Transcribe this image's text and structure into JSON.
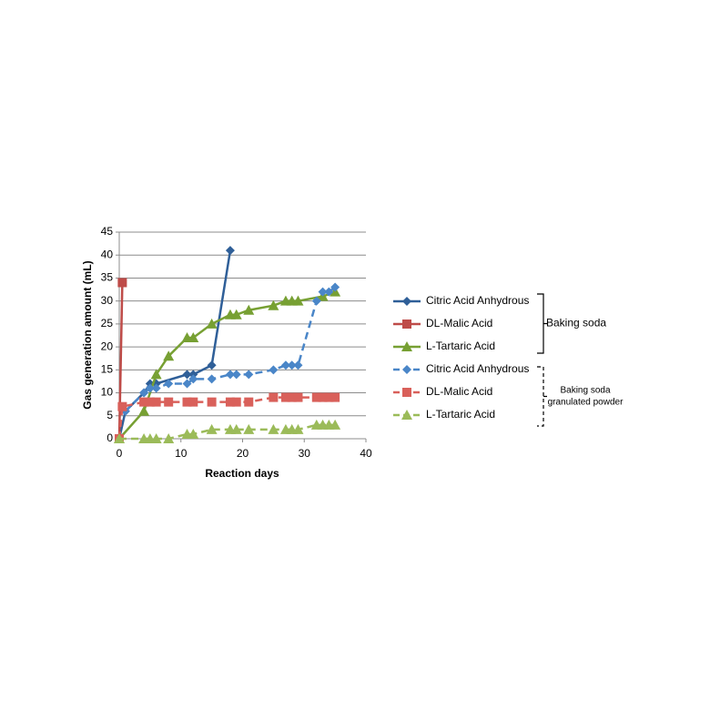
{
  "chart_data": {
    "type": "line",
    "x_label": "Reaction days",
    "y_label": "Gas generation amount (mL)",
    "xlim": [
      0,
      40
    ],
    "xticks": [
      0,
      10,
      20,
      30,
      40
    ],
    "ylim": [
      0,
      45
    ],
    "yticks": [
      0,
      5,
      10,
      15,
      20,
      25,
      30,
      35,
      40,
      45
    ],
    "grid": true,
    "series": [
      {
        "name": "Citric Acid Anhydrous",
        "color": "#2F5F98",
        "dashed": false,
        "marker": "diamond",
        "x": [
          0,
          1,
          4,
          5,
          6,
          11,
          12,
          15,
          18
        ],
        "values": [
          0,
          6,
          10,
          12,
          12,
          14,
          14,
          16,
          41
        ]
      },
      {
        "name": "DL-Malic  Acid",
        "color": "#BE4B48",
        "dashed": false,
        "marker": "square",
        "x": [
          0,
          0.5
        ],
        "values": [
          0,
          34
        ]
      },
      {
        "name": "L-Tartaric Acid",
        "color": "#77A033",
        "dashed": false,
        "marker": "triangle",
        "x": [
          0,
          4,
          6,
          8,
          11,
          12,
          15,
          18,
          19,
          21,
          25,
          27,
          28,
          29,
          33,
          35
        ],
        "values": [
          0,
          6,
          14,
          18,
          22,
          22,
          25,
          27,
          27,
          28,
          29,
          30,
          30,
          30,
          31,
          32
        ]
      },
      {
        "name": "Citric Acid Anhydrous",
        "color": "#4A86C8",
        "dashed": true,
        "marker": "diamond",
        "x": [
          1,
          4,
          5,
          6,
          8,
          11,
          12,
          15,
          18,
          19,
          21,
          25,
          27,
          28,
          29,
          32,
          33,
          34,
          35
        ],
        "values": [
          6,
          10,
          11,
          11,
          12,
          12,
          13,
          13,
          14,
          14,
          14,
          15,
          16,
          16,
          16,
          30,
          32,
          32,
          33
        ]
      },
      {
        "name": "DL-Malic  Acid",
        "color": "#D9605A",
        "dashed": true,
        "marker": "square",
        "x": [
          0,
          0.5,
          4,
          5,
          6,
          8,
          11,
          12,
          15,
          18,
          19,
          21,
          25,
          27,
          28,
          29,
          32,
          33,
          34,
          35
        ],
        "values": [
          0,
          7,
          8,
          8,
          8,
          8,
          8,
          8,
          8,
          8,
          8,
          8,
          9,
          9,
          9,
          9,
          9,
          9,
          9,
          9
        ]
      },
      {
        "name": "L-Tartaric Acid",
        "color": "#9BBB59",
        "dashed": true,
        "marker": "triangle",
        "x": [
          0,
          4,
          5,
          6,
          8,
          11,
          12,
          15,
          18,
          19,
          21,
          25,
          27,
          28,
          29,
          32,
          33,
          34,
          35
        ],
        "values": [
          0,
          0,
          0,
          0,
          0,
          1,
          1,
          2,
          2,
          2,
          2,
          2,
          2,
          2,
          2,
          3,
          3,
          3,
          3
        ]
      }
    ],
    "legend_groups": [
      {
        "lines": [
          "Baking soda"
        ],
        "dashed": false
      },
      {
        "lines": [
          "Baking soda",
          "granulated powder"
        ],
        "dashed": true
      }
    ]
  }
}
